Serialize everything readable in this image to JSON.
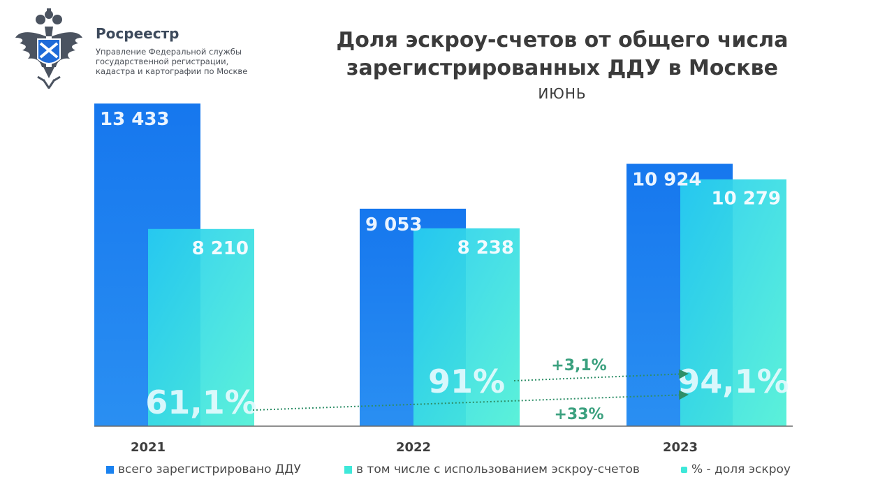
{
  "header": {
    "org_name": "Росреестр",
    "org_desc": [
      "Управление Федеральной службы",
      "государственной регистрации,",
      "кадастра и картографии по Москве"
    ]
  },
  "title_lines": [
    "Доля эскроу-счетов от общего числа",
    "зарегистрированных ДДУ в Москве"
  ],
  "subtitle": "ИЮНЬ",
  "colors": {
    "total": "#1a82f0",
    "escrow": "#3ee8d9",
    "pct_text": "#e9fbff",
    "arrow": "#2e8e67",
    "change_text": "#3aa07e",
    "axis": "#6a6a6a"
  },
  "chart_data": {
    "type": "bar",
    "categories": [
      "2021",
      "2022",
      "2023"
    ],
    "series": [
      {
        "name": "всего зарегистрировано ДДУ",
        "values": [
          13433,
          9053,
          10924
        ],
        "labels": [
          "13 433",
          "9 053",
          "10 924"
        ]
      },
      {
        "name": "в том числе с использованием эскроу-счетов",
        "values": [
          8210,
          8238,
          10279
        ],
        "labels": [
          "8 210",
          "8 238",
          "10 279"
        ]
      }
    ],
    "share_name": "% - доля эскроу",
    "share_values": [
      61.1,
      91,
      94.1
    ],
    "share_labels": [
      "61,1%",
      "91%",
      "94,1%"
    ],
    "changes": [
      {
        "label": "+3,1%",
        "from_year": "2022",
        "to_year": "2023"
      },
      {
        "label": "+33%",
        "from_year": "2021",
        "to_year": "2023"
      }
    ]
  }
}
